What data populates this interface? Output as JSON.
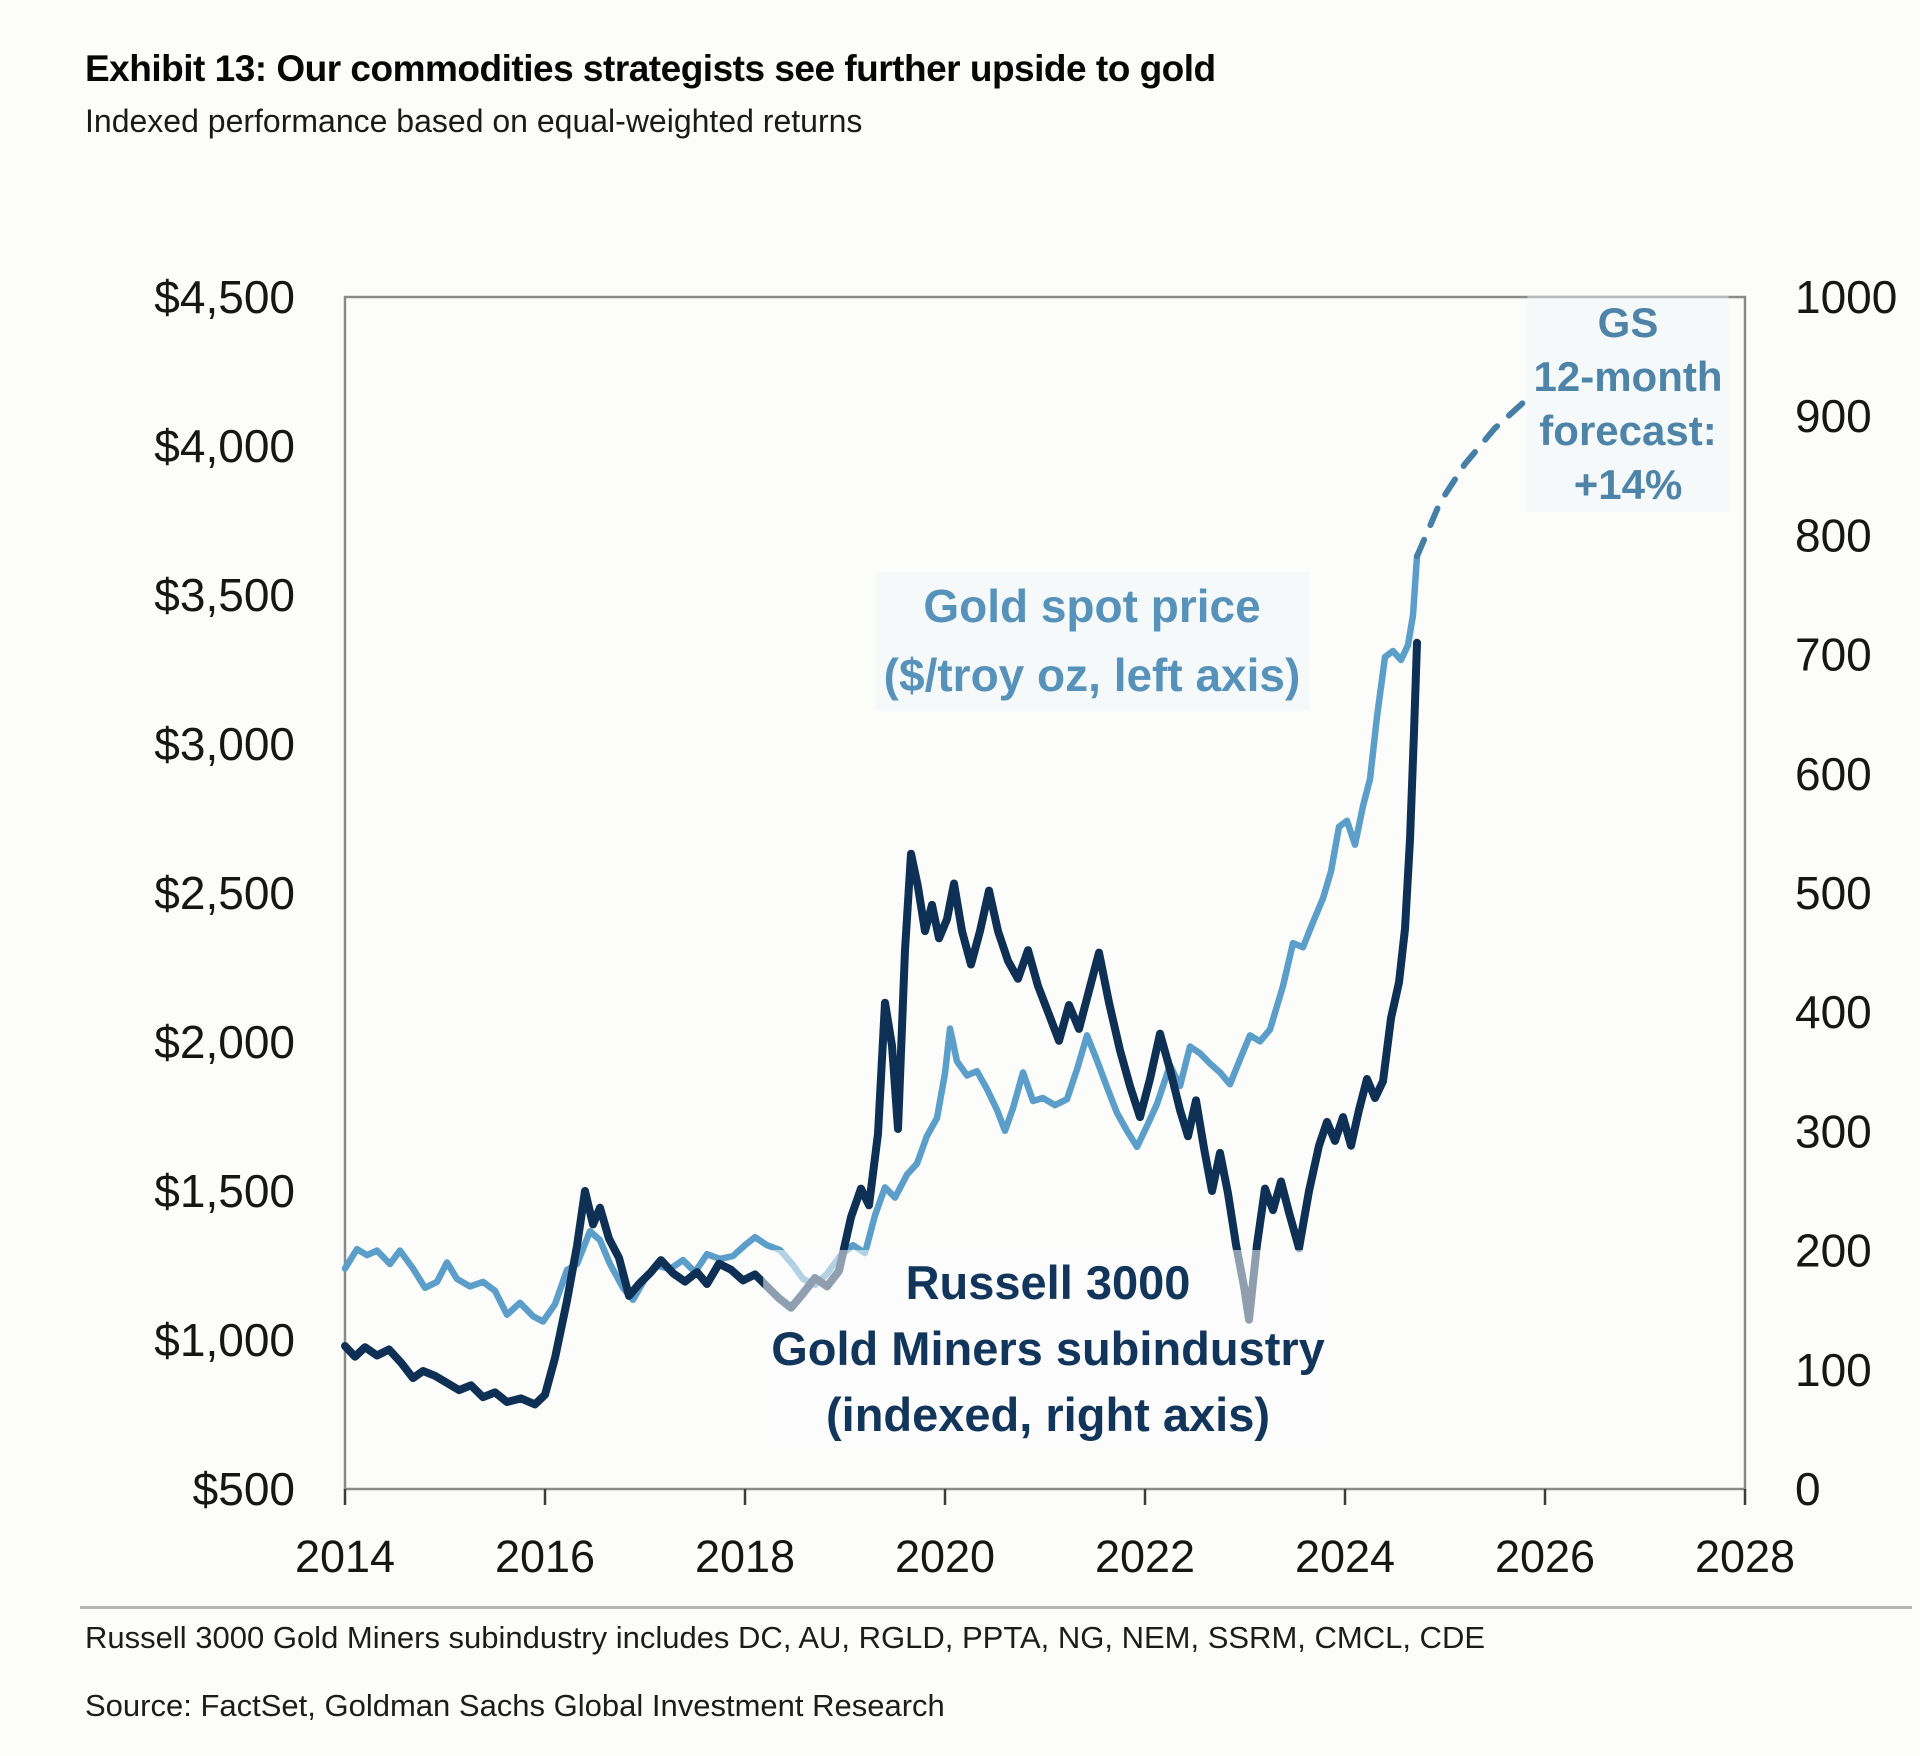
{
  "header": {
    "title": "Exhibit 13: Our commodities strategists see further upside to gold",
    "subtitle": "Indexed performance based on equal-weighted returns"
  },
  "footnotes": {
    "note": "Russell 3000 Gold Miners subindustry includes DC, AU, RGLD, PPTA, NG, NEM, SSRM, CMCL, CDE",
    "source": "Source: FactSet, Goldman Sachs Global Investment Research"
  },
  "colors": {
    "gold_line": "#5b9ec9",
    "forecast_dash": "#467fa6",
    "miners_line": "#0e3055",
    "frame": "#8a8a8a",
    "axis_text": "#161616",
    "tick": "#3c3c3c"
  },
  "chart_data": {
    "type": "line",
    "title": "Exhibit 13: Our commodities strategists see further upside to gold",
    "subtitle": "Indexed performance based on equal-weighted returns",
    "grid": false,
    "x_axis": {
      "range": [
        2014,
        2028
      ],
      "tick_values": [
        2014,
        2016,
        2018,
        2020,
        2022,
        2024,
        2026,
        2028
      ],
      "tick_labels": [
        "2014",
        "2016",
        "2018",
        "2020",
        "2022",
        "2024",
        "2026",
        "2028"
      ]
    },
    "left_axis": {
      "label": "Gold spot price ($/troy oz)",
      "range": [
        500,
        4500
      ],
      "tick_values": [
        4500,
        4000,
        3500,
        3000,
        2500,
        2000,
        1500,
        1000,
        500
      ],
      "tick_labels": [
        "$4,500",
        "$4,000",
        "$3,500",
        "$3,000",
        "$2,500",
        "$2,000",
        "$1,500",
        "$1,000",
        "$500"
      ]
    },
    "right_axis": {
      "label": "Russell 3000 Gold Miners subindustry (indexed)",
      "range": [
        0,
        1000
      ],
      "tick_values": [
        1000,
        900,
        800,
        700,
        600,
        500,
        400,
        300,
        200,
        100,
        0
      ],
      "tick_labels": [
        "1000",
        "900",
        "800",
        "700",
        "600",
        "500",
        "400",
        "300",
        "200",
        "100",
        "0"
      ]
    },
    "annotations": {
      "gold_label": {
        "lines": [
          "Gold spot price",
          "($/troy oz, left axis)"
        ]
      },
      "forecast_label": {
        "lines": [
          "GS",
          "12-month",
          "forecast:",
          "+14%"
        ]
      },
      "miners_label": {
        "lines": [
          "Russell 3000",
          "Gold Miners subindustry",
          "(indexed, right axis)"
        ]
      }
    },
    "series": [
      {
        "name": "Gold spot price",
        "axis": "left",
        "style": "solid",
        "color": "#5b9ec9",
        "width": 6.5,
        "points": [
          [
            2014.0,
            1240
          ],
          [
            2014.12,
            1305
          ],
          [
            2014.22,
            1285
          ],
          [
            2014.32,
            1300
          ],
          [
            2014.45,
            1255
          ],
          [
            2014.55,
            1300
          ],
          [
            2014.68,
            1240
          ],
          [
            2014.8,
            1175
          ],
          [
            2014.92,
            1195
          ],
          [
            2015.02,
            1260
          ],
          [
            2015.12,
            1205
          ],
          [
            2015.25,
            1180
          ],
          [
            2015.38,
            1195
          ],
          [
            2015.5,
            1165
          ],
          [
            2015.62,
            1085
          ],
          [
            2015.75,
            1125
          ],
          [
            2015.88,
            1080
          ],
          [
            2015.98,
            1062
          ],
          [
            2016.1,
            1120
          ],
          [
            2016.22,
            1235
          ],
          [
            2016.32,
            1255
          ],
          [
            2016.45,
            1365
          ],
          [
            2016.55,
            1335
          ],
          [
            2016.65,
            1255
          ],
          [
            2016.78,
            1175
          ],
          [
            2016.88,
            1135
          ],
          [
            2017.0,
            1205
          ],
          [
            2017.12,
            1250
          ],
          [
            2017.25,
            1238
          ],
          [
            2017.38,
            1268
          ],
          [
            2017.5,
            1228
          ],
          [
            2017.62,
            1288
          ],
          [
            2017.75,
            1272
          ],
          [
            2017.88,
            1282
          ],
          [
            2018.0,
            1318
          ],
          [
            2018.1,
            1345
          ],
          [
            2018.22,
            1318
          ],
          [
            2018.35,
            1302
          ],
          [
            2018.48,
            1252
          ],
          [
            2018.58,
            1205
          ],
          [
            2018.7,
            1185
          ],
          [
            2018.82,
            1222
          ],
          [
            2018.95,
            1282
          ],
          [
            2019.08,
            1318
          ],
          [
            2019.2,
            1292
          ],
          [
            2019.3,
            1418
          ],
          [
            2019.4,
            1512
          ],
          [
            2019.5,
            1478
          ],
          [
            2019.62,
            1555
          ],
          [
            2019.72,
            1592
          ],
          [
            2019.82,
            1685
          ],
          [
            2019.92,
            1745
          ],
          [
            2020.0,
            1895
          ],
          [
            2020.05,
            2045
          ],
          [
            2020.12,
            1935
          ],
          [
            2020.22,
            1888
          ],
          [
            2020.32,
            1902
          ],
          [
            2020.42,
            1842
          ],
          [
            2020.52,
            1772
          ],
          [
            2020.6,
            1702
          ],
          [
            2020.68,
            1778
          ],
          [
            2020.78,
            1898
          ],
          [
            2020.88,
            1802
          ],
          [
            2020.98,
            1812
          ],
          [
            2021.1,
            1788
          ],
          [
            2021.22,
            1808
          ],
          [
            2021.32,
            1908
          ],
          [
            2021.42,
            2022
          ],
          [
            2021.52,
            1938
          ],
          [
            2021.62,
            1848
          ],
          [
            2021.72,
            1762
          ],
          [
            2021.82,
            1702
          ],
          [
            2021.92,
            1648
          ],
          [
            2022.02,
            1718
          ],
          [
            2022.12,
            1792
          ],
          [
            2022.25,
            1922
          ],
          [
            2022.35,
            1852
          ],
          [
            2022.45,
            1985
          ],
          [
            2022.55,
            1962
          ],
          [
            2022.65,
            1928
          ],
          [
            2022.75,
            1898
          ],
          [
            2022.85,
            1858
          ],
          [
            2022.95,
            1942
          ],
          [
            2023.05,
            2022
          ],
          [
            2023.15,
            2002
          ],
          [
            2023.25,
            2042
          ],
          [
            2023.38,
            2188
          ],
          [
            2023.48,
            2332
          ],
          [
            2023.58,
            2318
          ],
          [
            2023.68,
            2402
          ],
          [
            2023.78,
            2482
          ],
          [
            2023.86,
            2572
          ],
          [
            2023.94,
            2722
          ],
          [
            2024.02,
            2742
          ],
          [
            2024.1,
            2662
          ],
          [
            2024.18,
            2792
          ],
          [
            2024.25,
            2882
          ],
          [
            2024.32,
            3092
          ],
          [
            2024.4,
            3292
          ],
          [
            2024.48,
            3312
          ],
          [
            2024.56,
            3282
          ],
          [
            2024.63,
            3332
          ],
          [
            2024.68,
            3432
          ],
          [
            2024.72,
            3630
          ]
        ]
      },
      {
        "name": "GS 12-month forecast",
        "axis": "left",
        "style": "dashed",
        "color": "#467fa6",
        "width": 6,
        "points": [
          [
            2024.72,
            3630
          ],
          [
            2024.95,
            3810
          ],
          [
            2025.2,
            3940
          ],
          [
            2025.5,
            4060
          ],
          [
            2025.78,
            4145
          ]
        ]
      },
      {
        "name": "Russell 3000 Gold Miners subindustry",
        "axis": "right",
        "style": "solid",
        "color": "#0e3055",
        "width": 8,
        "points": [
          [
            2014.0,
            120
          ],
          [
            2014.1,
            111
          ],
          [
            2014.2,
            119
          ],
          [
            2014.32,
            112
          ],
          [
            2014.44,
            117
          ],
          [
            2014.56,
            106
          ],
          [
            2014.68,
            93
          ],
          [
            2014.78,
            99
          ],
          [
            2014.9,
            95
          ],
          [
            2015.02,
            89
          ],
          [
            2015.14,
            83
          ],
          [
            2015.26,
            87
          ],
          [
            2015.38,
            77
          ],
          [
            2015.5,
            81
          ],
          [
            2015.62,
            73
          ],
          [
            2015.76,
            76
          ],
          [
            2015.9,
            71
          ],
          [
            2016.0,
            79
          ],
          [
            2016.1,
            110
          ],
          [
            2016.22,
            158
          ],
          [
            2016.32,
            204
          ],
          [
            2016.4,
            250
          ],
          [
            2016.48,
            222
          ],
          [
            2016.55,
            236
          ],
          [
            2016.64,
            210
          ],
          [
            2016.74,
            194
          ],
          [
            2016.84,
            162
          ],
          [
            2016.94,
            172
          ],
          [
            2017.06,
            182
          ],
          [
            2017.16,
            192
          ],
          [
            2017.28,
            181
          ],
          [
            2017.4,
            174
          ],
          [
            2017.52,
            182
          ],
          [
            2017.62,
            172
          ],
          [
            2017.74,
            189
          ],
          [
            2017.86,
            184
          ],
          [
            2017.98,
            175
          ],
          [
            2018.1,
            180
          ],
          [
            2018.22,
            170
          ],
          [
            2018.34,
            160
          ],
          [
            2018.46,
            152
          ],
          [
            2018.58,
            164
          ],
          [
            2018.7,
            177
          ],
          [
            2018.82,
            170
          ],
          [
            2018.94,
            183
          ],
          [
            2019.06,
            228
          ],
          [
            2019.16,
            252
          ],
          [
            2019.24,
            238
          ],
          [
            2019.33,
            298
          ],
          [
            2019.4,
            408
          ],
          [
            2019.47,
            372
          ],
          [
            2019.53,
            302
          ],
          [
            2019.6,
            452
          ],
          [
            2019.66,
            533
          ],
          [
            2019.73,
            505
          ],
          [
            2019.8,
            468
          ],
          [
            2019.87,
            490
          ],
          [
            2019.94,
            462
          ],
          [
            2020.02,
            478
          ],
          [
            2020.09,
            508
          ],
          [
            2020.17,
            468
          ],
          [
            2020.26,
            440
          ],
          [
            2020.35,
            468
          ],
          [
            2020.44,
            502
          ],
          [
            2020.53,
            468
          ],
          [
            2020.63,
            443
          ],
          [
            2020.73,
            428
          ],
          [
            2020.83,
            452
          ],
          [
            2020.93,
            422
          ],
          [
            2021.04,
            398
          ],
          [
            2021.14,
            376
          ],
          [
            2021.24,
            406
          ],
          [
            2021.34,
            386
          ],
          [
            2021.44,
            418
          ],
          [
            2021.54,
            450
          ],
          [
            2021.64,
            408
          ],
          [
            2021.75,
            368
          ],
          [
            2021.85,
            338
          ],
          [
            2021.95,
            312
          ],
          [
            2022.05,
            344
          ],
          [
            2022.15,
            382
          ],
          [
            2022.25,
            352
          ],
          [
            2022.35,
            318
          ],
          [
            2022.43,
            296
          ],
          [
            2022.51,
            326
          ],
          [
            2022.59,
            286
          ],
          [
            2022.67,
            250
          ],
          [
            2022.75,
            282
          ],
          [
            2022.83,
            248
          ],
          [
            2022.91,
            205
          ],
          [
            2022.99,
            170
          ],
          [
            2023.04,
            142
          ],
          [
            2023.12,
            205
          ],
          [
            2023.2,
            252
          ],
          [
            2023.28,
            234
          ],
          [
            2023.36,
            258
          ],
          [
            2023.44,
            232
          ],
          [
            2023.54,
            202
          ],
          [
            2023.64,
            250
          ],
          [
            2023.74,
            288
          ],
          [
            2023.82,
            308
          ],
          [
            2023.9,
            292
          ],
          [
            2023.98,
            312
          ],
          [
            2024.06,
            288
          ],
          [
            2024.14,
            318
          ],
          [
            2024.22,
            344
          ],
          [
            2024.3,
            328
          ],
          [
            2024.38,
            342
          ],
          [
            2024.46,
            395
          ],
          [
            2024.54,
            425
          ],
          [
            2024.6,
            470
          ],
          [
            2024.65,
            545
          ],
          [
            2024.69,
            635
          ],
          [
            2024.72,
            710
          ]
        ]
      }
    ]
  }
}
